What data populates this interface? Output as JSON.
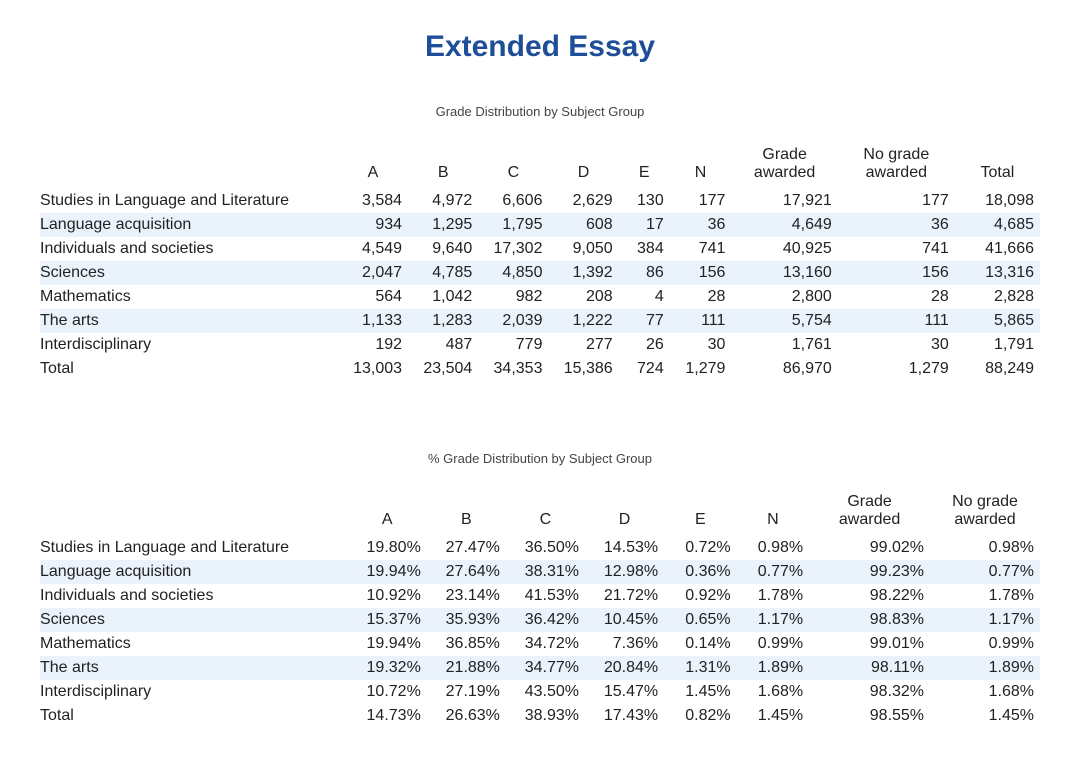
{
  "title": "Extended Essay",
  "title_color": "#1f4e99",
  "alt_row_color": "#eaf2fb",
  "text_color": "#222222",
  "background_color": "#ffffff",
  "table1": {
    "subtitle": "Grade Distribution by Subject Group",
    "columns": [
      "",
      "A",
      "B",
      "C",
      "D",
      "E",
      "N",
      "Grade awarded",
      "No grade awarded",
      "Total"
    ],
    "bold_cols": [
      9
    ],
    "alt_rows": [
      1,
      3,
      5
    ],
    "rows": [
      [
        "Studies in Language and Literature",
        "3,584",
        "4,972",
        "6,606",
        "2,629",
        "130",
        "177",
        "17,921",
        "177",
        "18,098"
      ],
      [
        "Language acquisition",
        "934",
        "1,295",
        "1,795",
        "608",
        "17",
        "36",
        "4,649",
        "36",
        "4,685"
      ],
      [
        "Individuals and societies",
        "4,549",
        "9,640",
        "17,302",
        "9,050",
        "384",
        "741",
        "40,925",
        "741",
        "41,666"
      ],
      [
        "Sciences",
        "2,047",
        "4,785",
        "4,850",
        "1,392",
        "86",
        "156",
        "13,160",
        "156",
        "13,316"
      ],
      [
        "Mathematics",
        "564",
        "1,042",
        "982",
        "208",
        "4",
        "28",
        "2,800",
        "28",
        "2,828"
      ],
      [
        "The arts",
        "1,133",
        "1,283",
        "2,039",
        "1,222",
        "77",
        "111",
        "5,754",
        "111",
        "5,865"
      ],
      [
        "Interdisciplinary",
        "192",
        "487",
        "779",
        "277",
        "26",
        "30",
        "1,761",
        "30",
        "1,791"
      ]
    ],
    "total_row": [
      "Total",
      "13,003",
      "23,504",
      "34,353",
      "15,386",
      "724",
      "1,279",
      "86,970",
      "1,279",
      "88,249"
    ]
  },
  "table2": {
    "subtitle": "% Grade Distribution by Subject Group",
    "columns": [
      "",
      "A",
      "B",
      "C",
      "D",
      "E",
      "N",
      "Grade awarded",
      "No grade awarded"
    ],
    "bold_cols": [],
    "alt_rows": [
      1,
      3,
      5
    ],
    "rows": [
      [
        "Studies in Language and Literature",
        "19.80%",
        "27.47%",
        "36.50%",
        "14.53%",
        "0.72%",
        "0.98%",
        "99.02%",
        "0.98%"
      ],
      [
        "Language acquisition",
        "19.94%",
        "27.64%",
        "38.31%",
        "12.98%",
        "0.36%",
        "0.77%",
        "99.23%",
        "0.77%"
      ],
      [
        "Individuals and societies",
        "10.92%",
        "23.14%",
        "41.53%",
        "21.72%",
        "0.92%",
        "1.78%",
        "98.22%",
        "1.78%"
      ],
      [
        "Sciences",
        "15.37%",
        "35.93%",
        "36.42%",
        "10.45%",
        "0.65%",
        "1.17%",
        "98.83%",
        "1.17%"
      ],
      [
        "Mathematics",
        "19.94%",
        "36.85%",
        "34.72%",
        "7.36%",
        "0.14%",
        "0.99%",
        "99.01%",
        "0.99%"
      ],
      [
        "The arts",
        "19.32%",
        "21.88%",
        "34.77%",
        "20.84%",
        "1.31%",
        "1.89%",
        "98.11%",
        "1.89%"
      ],
      [
        "Interdisciplinary",
        "10.72%",
        "27.19%",
        "43.50%",
        "15.47%",
        "1.45%",
        "1.68%",
        "98.32%",
        "1.68%"
      ]
    ],
    "total_row": [
      "Total",
      "14.73%",
      "26.63%",
      "38.93%",
      "17.43%",
      "0.82%",
      "1.45%",
      "98.55%",
      "1.45%"
    ]
  }
}
